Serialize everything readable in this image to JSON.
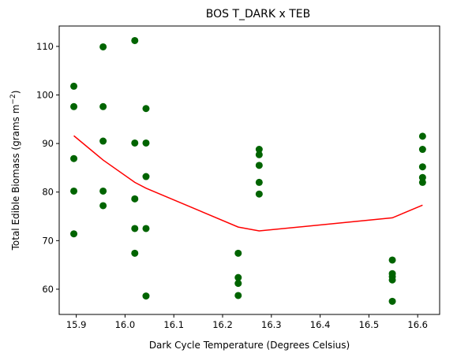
{
  "chart_data": {
    "type": "scatter",
    "title": "BOS T_DARK x TEB",
    "xlabel": "Dark Cycle Temperature (Degrees Celsius)",
    "ylabel_main": "Total Edible Biomass (grams m",
    "ylabel_sup": "−2",
    "ylabel_close": ")",
    "xlim": [
      15.865,
      16.645
    ],
    "ylim": [
      54.8,
      114.2
    ],
    "xticks": [
      15.9,
      16.0,
      16.1,
      16.2,
      16.3,
      16.4,
      16.5,
      16.6
    ],
    "xtick_labels": [
      "15.9",
      "16.0",
      "16.1",
      "16.2",
      "16.3",
      "16.4",
      "16.5",
      "16.6"
    ],
    "yticks": [
      60,
      70,
      80,
      90,
      100,
      110
    ],
    "ytick_labels": [
      "60",
      "70",
      "80",
      "90",
      "100",
      "110"
    ],
    "grid": false,
    "series": [
      {
        "kind": "scatter",
        "color": "#006400",
        "points": [
          [
            15.895,
            101.8
          ],
          [
            15.895,
            97.6
          ],
          [
            15.895,
            86.9
          ],
          [
            15.895,
            80.2
          ],
          [
            15.895,
            71.4
          ],
          [
            15.955,
            109.9
          ],
          [
            15.955,
            97.6
          ],
          [
            15.955,
            90.5
          ],
          [
            15.955,
            80.2
          ],
          [
            15.955,
            77.2
          ],
          [
            16.02,
            111.2
          ],
          [
            16.02,
            90.1
          ],
          [
            16.02,
            78.6
          ],
          [
            16.02,
            72.5
          ],
          [
            16.02,
            67.4
          ],
          [
            16.043,
            97.2
          ],
          [
            16.043,
            90.1
          ],
          [
            16.043,
            83.2
          ],
          [
            16.043,
            72.5
          ],
          [
            16.043,
            58.6
          ],
          [
            16.232,
            67.4
          ],
          [
            16.232,
            62.4
          ],
          [
            16.232,
            61.2
          ],
          [
            16.232,
            58.7
          ],
          [
            16.275,
            88.8
          ],
          [
            16.275,
            87.7
          ],
          [
            16.275,
            85.5
          ],
          [
            16.275,
            82.0
          ],
          [
            16.275,
            79.6
          ],
          [
            16.548,
            66.0
          ],
          [
            16.548,
            63.2
          ],
          [
            16.548,
            62.6
          ],
          [
            16.548,
            61.9
          ],
          [
            16.548,
            57.5
          ],
          [
            16.61,
            91.5
          ],
          [
            16.61,
            88.8
          ],
          [
            16.61,
            85.2
          ],
          [
            16.61,
            83.0
          ],
          [
            16.61,
            82.0
          ]
        ]
      },
      {
        "kind": "line",
        "color": "#ff0000",
        "points": [
          [
            15.895,
            91.6
          ],
          [
            15.955,
            86.6
          ],
          [
            16.02,
            82.0
          ],
          [
            16.043,
            80.8
          ],
          [
            16.232,
            72.8
          ],
          [
            16.275,
            72.0
          ],
          [
            16.548,
            74.7
          ],
          [
            16.61,
            77.3
          ]
        ]
      }
    ]
  }
}
